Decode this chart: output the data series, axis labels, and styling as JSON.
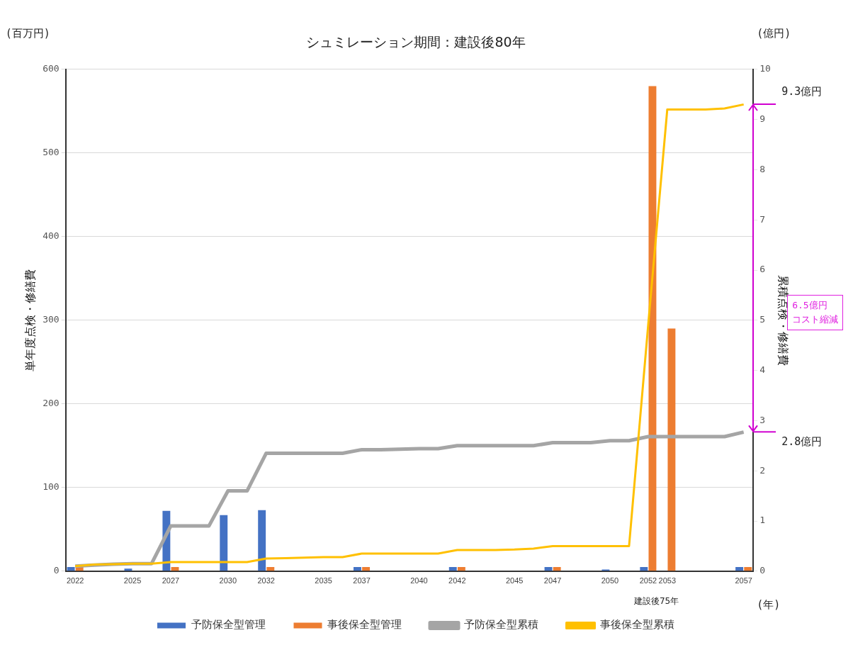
{
  "chart_data": {
    "type": "bar",
    "title": "シュミレーション期間：建設後80年",
    "ylabel": "単年度点検・修繕費",
    "y2label": "累積点検・修繕費",
    "categories": [
      "2022",
      null,
      null,
      "2025",
      null,
      "2027",
      null,
      null,
      "2030",
      null,
      "2032",
      null,
      null,
      "2035",
      null,
      "2037",
      null,
      null,
      "2040",
      null,
      "2042",
      null,
      null,
      "2045",
      null,
      "2047",
      null,
      null,
      "2050",
      null,
      "2052",
      "2053",
      null,
      null,
      null,
      "2057"
    ],
    "series": [
      {
        "name": "予防保全型管理",
        "color": "#4472c4",
        "values": [
          5,
          0,
          0,
          3,
          0,
          72,
          0,
          0,
          67,
          0,
          73,
          0,
          0,
          0,
          0,
          5,
          0,
          0,
          0,
          0,
          5,
          0,
          0,
          0,
          0,
          5,
          0,
          0,
          2,
          0,
          5,
          0,
          0,
          0,
          0,
          5
        ]
      },
      {
        "name": "事後保全型管理",
        "color": "#ed7d31",
        "values": [
          5,
          0,
          0,
          0,
          0,
          5,
          0,
          0,
          0,
          0,
          5,
          0,
          0,
          0,
          0,
          5,
          0,
          0,
          0,
          0,
          5,
          0,
          0,
          0,
          0,
          5,
          0,
          0,
          0,
          0,
          580,
          290,
          0,
          0,
          0,
          5
        ]
      },
      {
        "name": "予防保全型累積",
        "type": "line",
        "axis": "y2",
        "color": "#a5a5a5",
        "values": [
          0.1,
          0.12,
          0.14,
          0.15,
          0.15,
          0.9,
          0.9,
          0.9,
          1.6,
          1.6,
          2.35,
          2.35,
          2.35,
          2.35,
          2.35,
          2.42,
          2.42,
          2.43,
          2.44,
          2.44,
          2.5,
          2.5,
          2.5,
          2.5,
          2.5,
          2.56,
          2.56,
          2.56,
          2.6,
          2.6,
          2.68,
          2.68,
          2.68,
          2.68,
          2.68,
          2.77
        ]
      },
      {
        "name": "事後保全型累積",
        "type": "line",
        "axis": "y2",
        "color": "#ffc000",
        "values": [
          0.1,
          0.13,
          0.14,
          0.15,
          0.15,
          0.18,
          0.18,
          0.18,
          0.18,
          0.18,
          0.25,
          0.26,
          0.27,
          0.28,
          0.28,
          0.35,
          0.35,
          0.35,
          0.35,
          0.35,
          0.42,
          0.42,
          0.42,
          0.43,
          0.45,
          0.5,
          0.5,
          0.5,
          0.5,
          0.5,
          4.9,
          9.2,
          9.2,
          9.2,
          9.22,
          9.3
        ]
      }
    ],
    "ylim": [
      0,
      600
    ],
    "yticks": [
      0,
      100,
      200,
      300,
      400,
      500,
      600
    ],
    "y2lim": [
      0,
      10
    ],
    "y2ticks": [
      0,
      1,
      2,
      3,
      4,
      5,
      6,
      7,
      8,
      9,
      10
    ],
    "grid": "y",
    "legend": "bottom",
    "marker": "none",
    "annotations": [
      "(百万円)",
      "(億円)",
      "(年)",
      "9.3億円",
      "2.8億円",
      "6.5億円コスト縮減",
      "建設後75年"
    ]
  }
}
